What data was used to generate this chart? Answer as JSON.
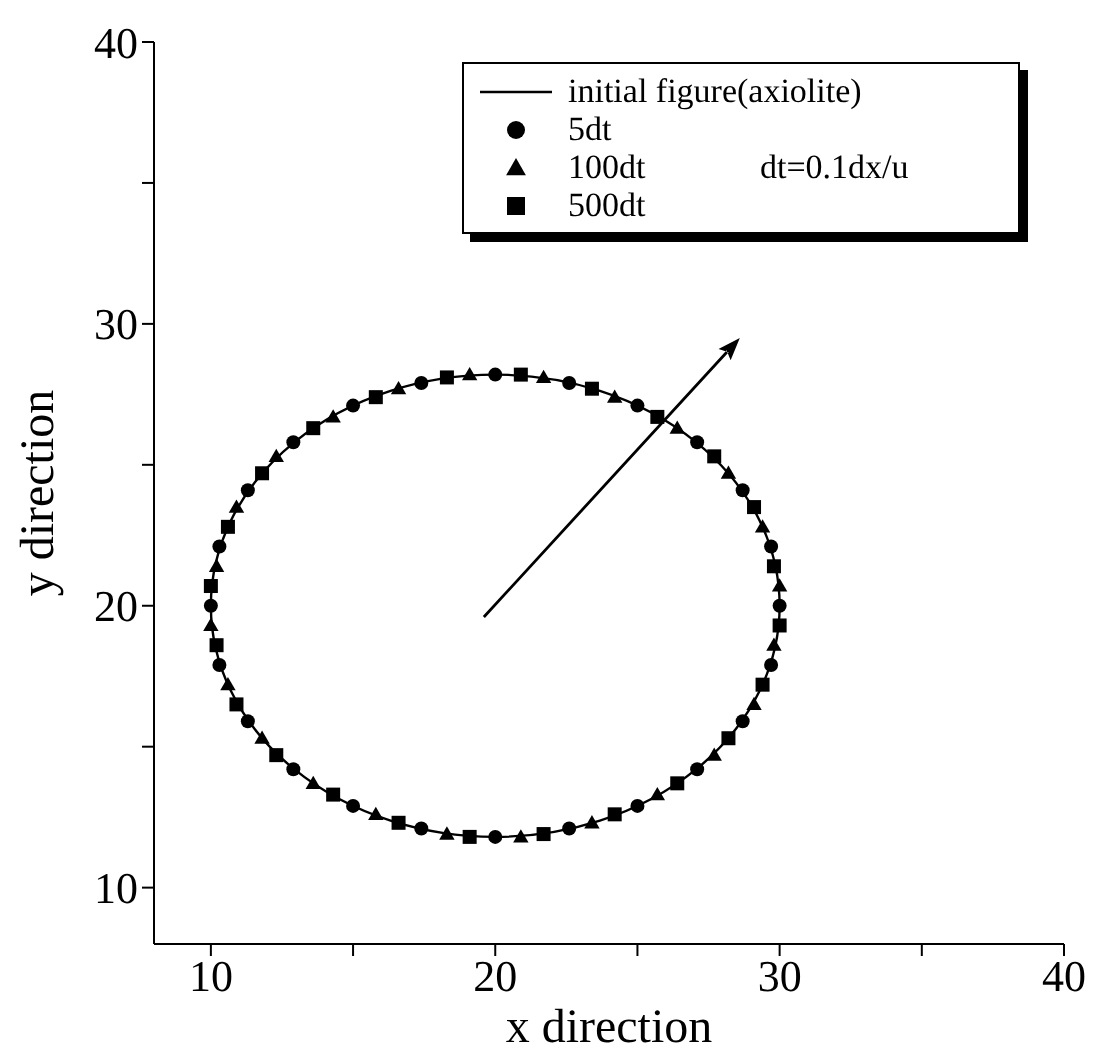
{
  "chart_data": {
    "type": "scatter",
    "xlabel": "x direction",
    "ylabel": "y direction",
    "xlim": [
      8,
      40
    ],
    "ylim": [
      8,
      40
    ],
    "xticks": [
      10,
      {
        "value": 15,
        "label": null
      },
      20,
      {
        "value": 25,
        "label": null
      },
      30,
      {
        "value": 35,
        "label": null
      },
      40
    ],
    "yticks": [
      10,
      {
        "value": 15,
        "label": null
      },
      20,
      {
        "value": 25,
        "label": null
      },
      30,
      {
        "value": 35,
        "label": null
      },
      40
    ],
    "grid": false,
    "legend": "top right",
    "annotations": [
      "initial figure(axiolite)",
      "dt=0.1dx/u"
    ],
    "series": [
      {
        "name": "5dt",
        "type": "scatter",
        "marker": "circle",
        "color": "#000000",
        "x": [
          30,
          29.7,
          28.7,
          27.1,
          25,
          22.6,
          20,
          17.4,
          15,
          12.9,
          11.3,
          10.3,
          10,
          10.3,
          11.3,
          12.9,
          15,
          17.4,
          20,
          22.6,
          25,
          27.1,
          28.7,
          29.7
        ],
        "values": [
          20,
          22.1,
          24.1,
          25.8,
          27.1,
          27.9,
          28.2,
          27.9,
          27.1,
          25.8,
          24.1,
          22.1,
          20,
          17.9,
          15.9,
          14.2,
          12.9,
          12.1,
          11.8,
          12.1,
          12.9,
          14.2,
          15.9,
          17.9
        ]
      },
      {
        "name": "100dt",
        "type": "scatter",
        "marker": "triangle",
        "color": "#000000",
        "x": [
          30,
          29.4,
          28.2,
          26.4,
          24.2,
          21.7,
          19.1,
          16.6,
          14.3,
          12.3,
          10.9,
          10.2,
          10,
          10.6,
          11.8,
          13.6,
          15.8,
          18.3,
          20.9,
          23.4,
          25.7,
          27.7,
          29.1,
          29.8
        ],
        "values": [
          20.7,
          22.8,
          24.7,
          26.3,
          27.4,
          28.1,
          28.2,
          27.7,
          26.7,
          25.3,
          23.5,
          21.4,
          19.3,
          17.2,
          15.3,
          13.7,
          12.6,
          11.9,
          11.8,
          12.3,
          13.3,
          14.7,
          16.5,
          18.6
        ]
      },
      {
        "name": "500dt",
        "type": "scatter",
        "marker": "square",
        "color": "#000000",
        "x": [
          29.8,
          29.1,
          27.7,
          25.7,
          23.4,
          20.9,
          18.3,
          15.8,
          13.6,
          11.8,
          10.6,
          10,
          10.2,
          10.9,
          12.3,
          14.3,
          16.6,
          19.1,
          21.7,
          24.2,
          26.4,
          28.2,
          29.4,
          30
        ],
        "values": [
          21.4,
          23.5,
          25.3,
          26.7,
          27.7,
          28.2,
          28.1,
          27.4,
          26.3,
          24.7,
          22.8,
          20.7,
          18.6,
          16.5,
          14.7,
          13.3,
          12.3,
          11.8,
          11.9,
          12.6,
          13.7,
          15.3,
          17.2,
          19.3
        ]
      }
    ]
  }
}
